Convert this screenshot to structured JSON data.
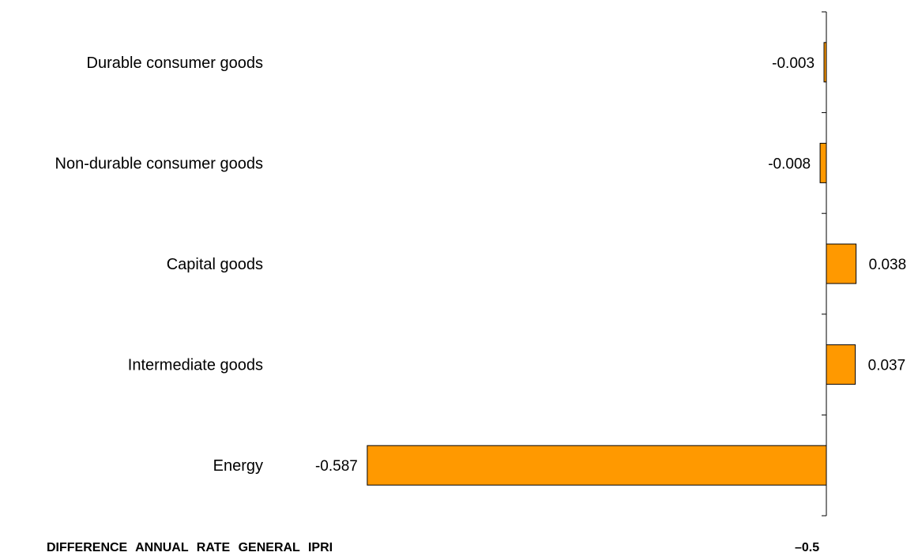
{
  "chart_data": {
    "type": "bar",
    "orientation": "horizontal",
    "categories": [
      "Durable consumer goods",
      "Non-durable consumer goods",
      "Capital goods",
      "Intermediate goods",
      "Energy"
    ],
    "values": [
      -0.003,
      -0.008,
      0.038,
      0.037,
      -0.587
    ],
    "value_labels": [
      "-0.003",
      "-0.008",
      "0.038",
      "0.037",
      "-0.587"
    ],
    "xlim": [
      -0.6,
      0.12
    ],
    "grid": false,
    "legend": "none",
    "bar_color": "#FF9900",
    "bar_edge_color": "#000000"
  },
  "footer": {
    "title": "DIFFERENCE  ANNUAL  RATE  GENERAL  IPRI",
    "total": "–0.5"
  }
}
